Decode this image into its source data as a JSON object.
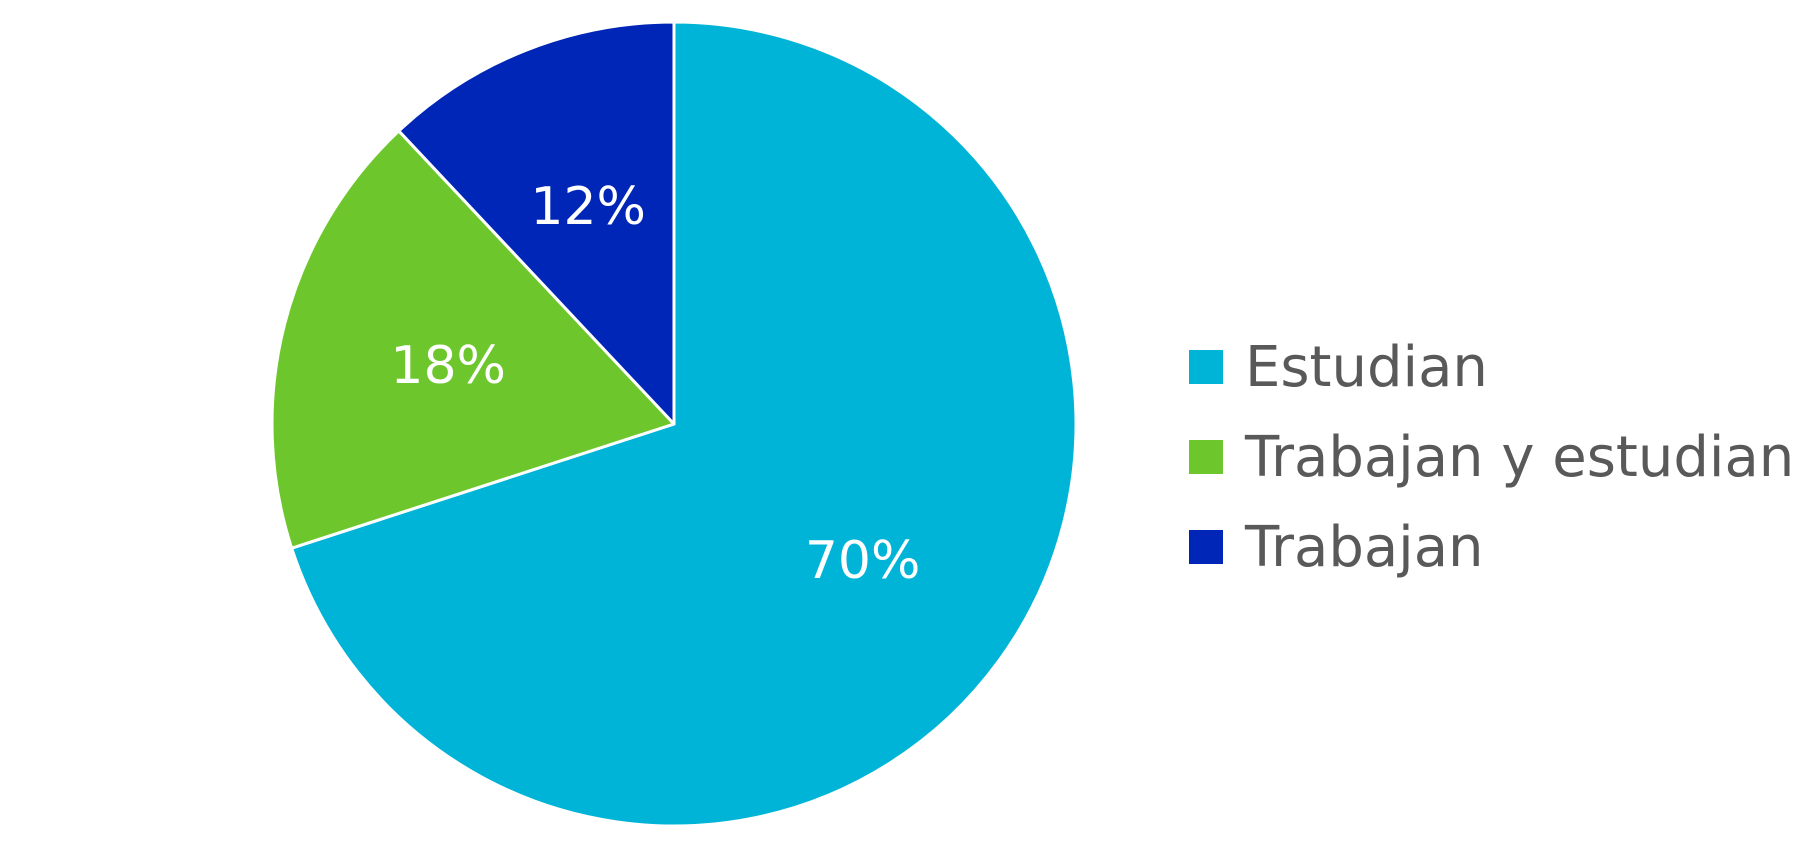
{
  "chart_data": {
    "type": "pie",
    "categories": [
      "Estudian",
      "Trabajan y estudian",
      "Trabajan"
    ],
    "values": [
      70,
      18,
      12
    ],
    "data_labels": [
      "70%",
      "18%",
      "12%"
    ],
    "colors": [
      "#00B4D8",
      "#6DC72C",
      "#0026B8"
    ],
    "legend_position": "right",
    "start_angle": "top",
    "direction": "clockwise"
  }
}
